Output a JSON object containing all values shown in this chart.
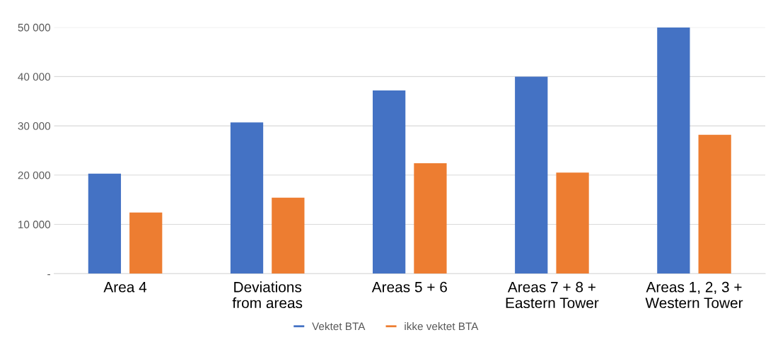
{
  "chart_data": {
    "type": "bar",
    "categories": [
      "Area 4",
      "Deviations\nfrom areas",
      "Areas 5 + 6",
      "Areas 7 + 8 +\nEastern Tower",
      "Areas 1, 2, 3 +\nWestern Tower"
    ],
    "series": [
      {
        "name": "Vektet BTA",
        "color": "#4472c4",
        "values": [
          20300,
          30700,
          37200,
          40000,
          50000
        ]
      },
      {
        "name": "ikke vektet BTA",
        "color": "#ed7d31",
        "values": [
          12400,
          15400,
          22400,
          20500,
          28200
        ]
      }
    ],
    "ylim": [
      0,
      50000
    ],
    "yticks": [
      {
        "value": 0,
        "label": "-"
      },
      {
        "value": 10000,
        "label": "10 000"
      },
      {
        "value": 20000,
        "label": "20 000"
      },
      {
        "value": 30000,
        "label": "30 000"
      },
      {
        "value": 40000,
        "label": "40 000"
      },
      {
        "value": 50000,
        "label": "50 000"
      }
    ],
    "grid": "y",
    "legend": "bottom"
  }
}
